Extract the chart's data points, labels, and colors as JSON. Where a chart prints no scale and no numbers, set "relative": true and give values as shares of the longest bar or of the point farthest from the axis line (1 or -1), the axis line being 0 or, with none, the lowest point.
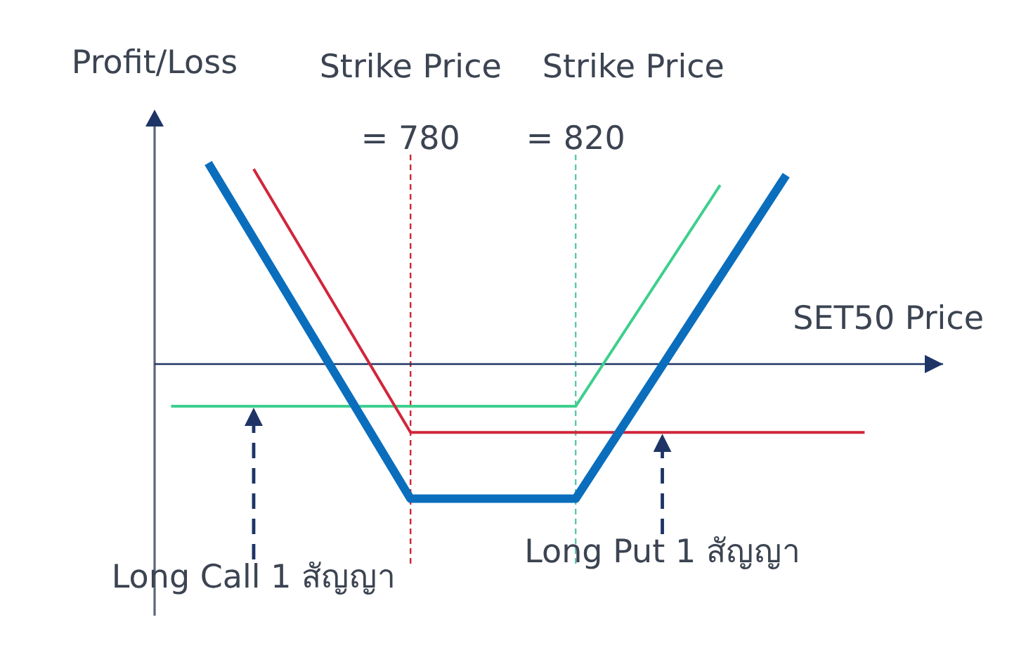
{
  "chart_data": {
    "type": "line",
    "xlabel": "SET50 Price",
    "ylabel": "Profit/Loss",
    "relative": true,
    "xlim": [
      718,
      909
    ],
    "xticks": [
      {
        "value": 780,
        "label": "= 780"
      },
      {
        "value": 820,
        "label": "= 820"
      }
    ],
    "series": [
      {
        "color": "#0a6ebd",
        "x": [
          731,
          780,
          820,
          871
        ],
        "values": [
          1,
          -0.67,
          -0.67,
          0.94
        ]
      },
      {
        "color": "#d0263b",
        "x": [
          742,
          780,
          890
        ],
        "values": [
          0.97,
          -0.34,
          -0.34
        ]
      },
      {
        "color": "#3ecf8e",
        "x": [
          722,
          820,
          855
        ],
        "values": [
          -0.21,
          -0.21,
          0.89
        ]
      }
    ],
    "ref_lines": [
      {
        "axis": "x",
        "value": 780,
        "label": "Strike Price",
        "color": "#d0263b",
        "line_style": "dashed"
      },
      {
        "axis": "x",
        "value": 820,
        "label": "Strike Price",
        "color": "#5cc6b0",
        "line_style": "dashed"
      },
      {
        "axis": "y",
        "value": 0,
        "color": "#1e3466",
        "line_style": "solid"
      }
    ],
    "annotations": [
      {
        "text": "Long Call 1 สัญญา",
        "x": 742,
        "y": -0.21
      },
      {
        "text": "Long Put 1 สัญญา",
        "x": 841,
        "y": -0.34
      }
    ]
  }
}
